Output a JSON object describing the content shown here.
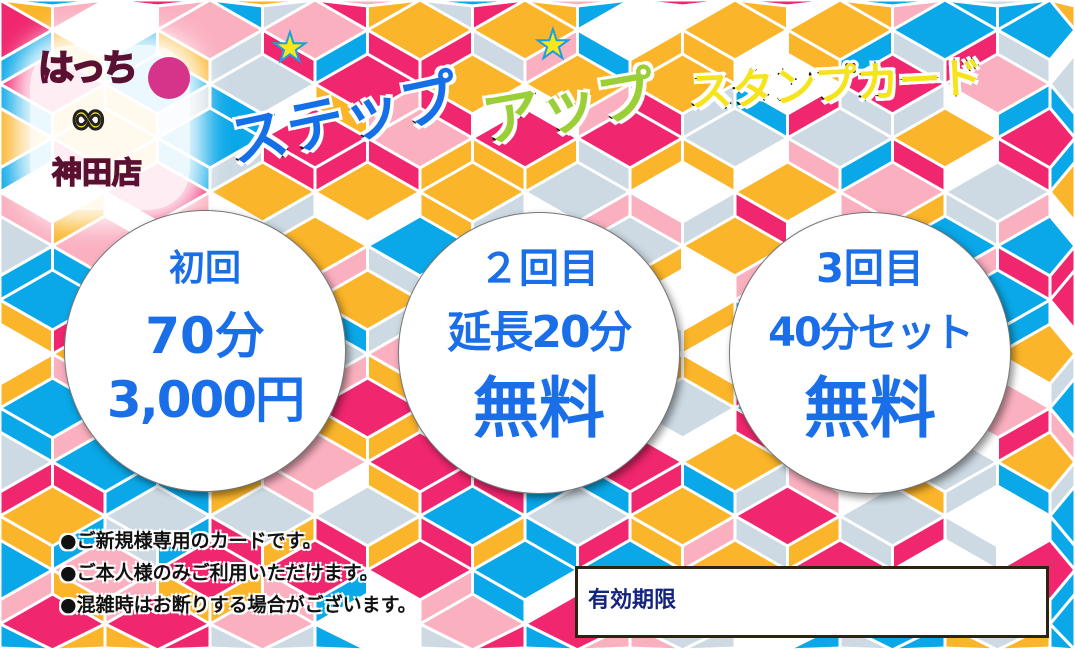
{
  "colors": {
    "pink": "#f0266e",
    "blue": "#0aa8e8",
    "yellow": "#fbb52a",
    "light_pink": "#fbb0c0",
    "light_gray": "#cddae3",
    "white": "#ffffff",
    "text_blue": "#1a6ee8",
    "expiry_text": "#14237e"
  },
  "logo": {
    "name": "はっち",
    "infinity": "∞",
    "store": "神田店"
  },
  "title": {
    "part1": "ステップ",
    "part2": "アップ",
    "part3": "スタンプカード"
  },
  "stamps": [
    {
      "label": "初回",
      "line1": "70分",
      "line2": "3,000円"
    },
    {
      "label": "２回目",
      "line1": "延長20分",
      "line2": "無料"
    },
    {
      "label": "3回目",
      "line1": "40分セット",
      "line2": "無料"
    }
  ],
  "notes": [
    "●ご新規様専用のカードです。",
    "●ご本人様のみご利用いただけます。",
    "●混雑時はお断りする場合がございます。"
  ],
  "expiry": {
    "label": "有効期限",
    "value": ""
  }
}
